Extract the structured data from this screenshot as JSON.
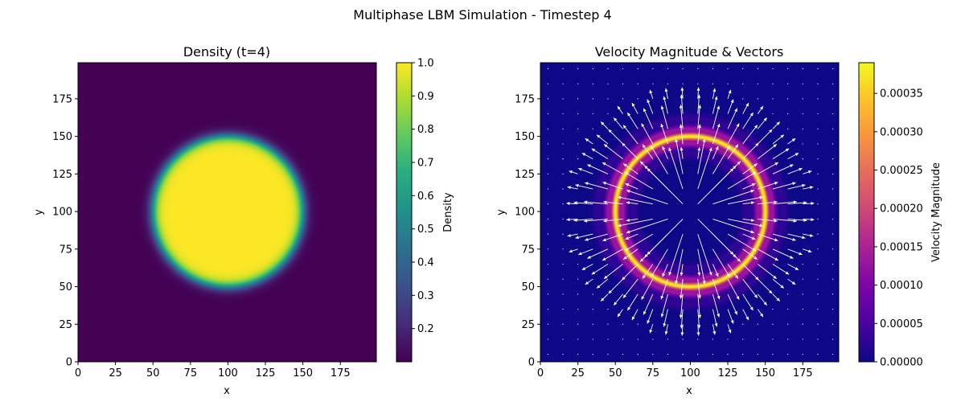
{
  "figure": {
    "suptitle": "Multiphase LBM Simulation - Timestep 4"
  },
  "chart_data": [
    {
      "type": "heatmap",
      "title": "Density (t=4)",
      "xlabel": "x",
      "ylabel": "y",
      "xlim": [
        0,
        199
      ],
      "ylim": [
        0,
        199
      ],
      "xticks": [
        0,
        25,
        50,
        75,
        100,
        125,
        150,
        175
      ],
      "yticks": [
        0,
        25,
        50,
        75,
        100,
        125,
        150,
        175
      ],
      "colormap": "viridis",
      "field": {
        "kind": "droplet",
        "center": [
          100,
          100
        ],
        "radius": 50,
        "interface_width": 4,
        "inside_value": 1.0,
        "outside_value": 0.1
      },
      "colorbar": {
        "label": "Density",
        "range": [
          0.1,
          1.0
        ],
        "ticks": [
          0.2,
          0.3,
          0.4,
          0.5,
          0.6,
          0.7,
          0.8,
          0.9,
          1.0
        ],
        "tick_labels": [
          "0.2",
          "0.3",
          "0.4",
          "0.5",
          "0.6",
          "0.7",
          "0.8",
          "0.9",
          "1.0"
        ]
      }
    },
    {
      "type": "heatmap",
      "title": "Velocity Magnitude & Vectors",
      "xlabel": "x",
      "ylabel": "y",
      "xlim": [
        0,
        199
      ],
      "ylim": [
        0,
        199
      ],
      "xticks": [
        0,
        25,
        50,
        75,
        100,
        125,
        150,
        175
      ],
      "yticks": [
        0,
        25,
        50,
        75,
        100,
        125,
        150,
        175
      ],
      "colormap": "plasma",
      "field": {
        "kind": "ring",
        "center": [
          100,
          100
        ],
        "rings": [
          {
            "radius": 50,
            "width": 2.2,
            "amplitude": 0.00039
          },
          {
            "radius": 45,
            "width": 2.5,
            "amplitude": 0.00013
          },
          {
            "radius": 55,
            "width": 2.5,
            "amplitude": 0.00013
          },
          {
            "radius": 38,
            "width": 3.5,
            "amplitude": 3e-05
          },
          {
            "radius": 62,
            "width": 3.5,
            "amplitude": 3e-05
          }
        ]
      },
      "vectors": {
        "grid_step": 10,
        "grid_start": 0,
        "color": "#ffffff",
        "description": "radial outward arrows around ring"
      },
      "colorbar": {
        "label": "Velocity Magnitude",
        "range": [
          0,
          0.00039
        ],
        "ticks": [
          0,
          5e-05,
          0.0001,
          0.00015,
          0.0002,
          0.00025,
          0.0003,
          0.00035
        ],
        "tick_labels": [
          "0.00000",
          "0.00005",
          "0.00010",
          "0.00015",
          "0.00020",
          "0.00025",
          "0.00030",
          "0.00035"
        ]
      }
    }
  ]
}
